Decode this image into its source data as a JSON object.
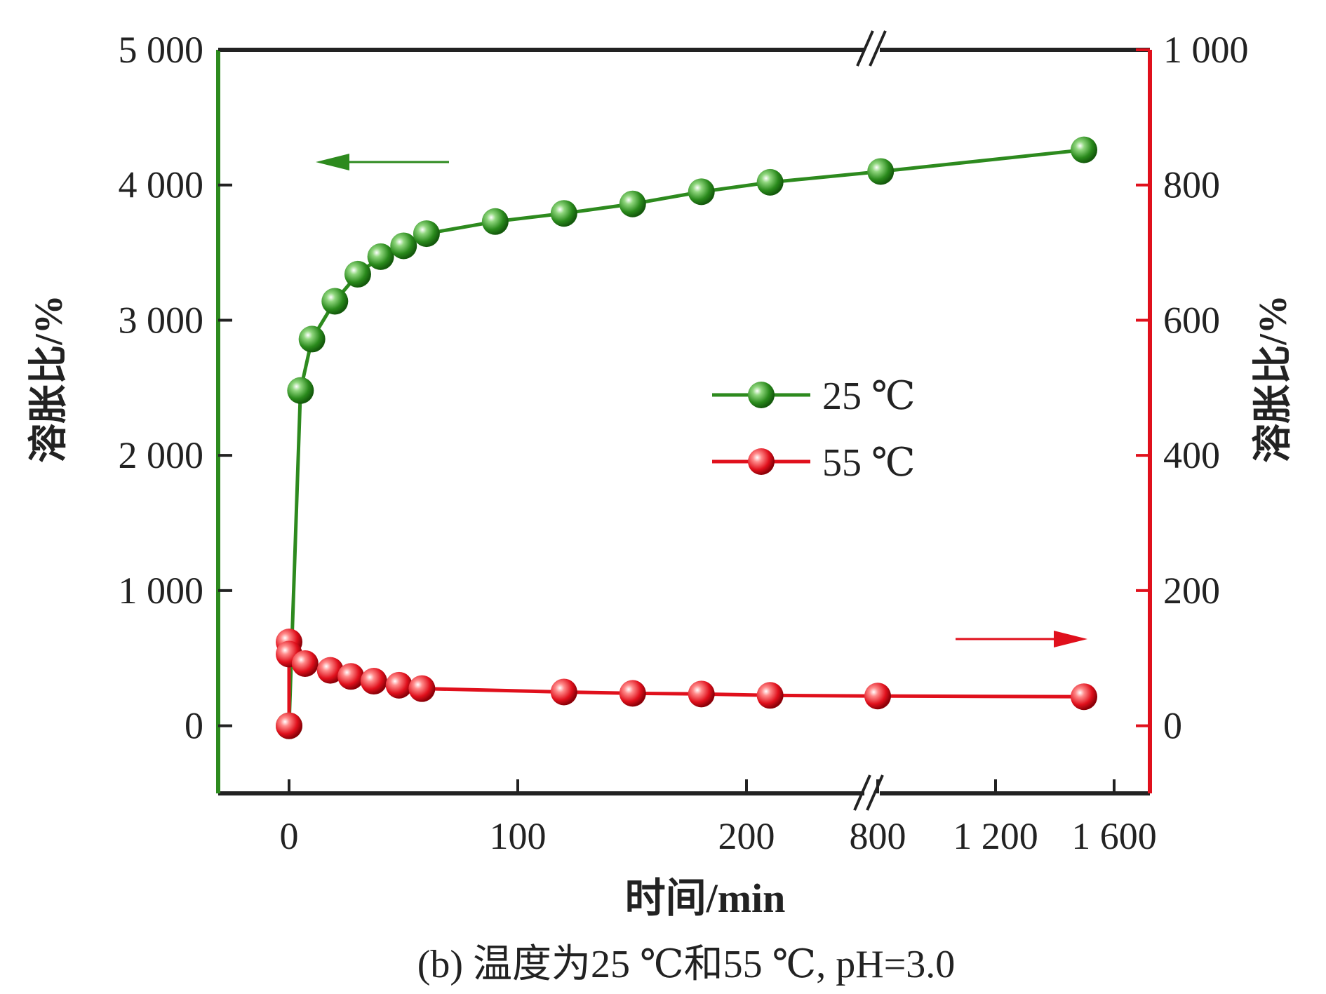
{
  "chart_data": {
    "type": "line",
    "caption": "(b) 温度为25 ℃和55 ℃, pH=3.0",
    "xlabel": "时间/min",
    "ylabel_left": "溶胀比/%",
    "ylabel_right": "溶胀比/%",
    "x_axis_break": true,
    "x_ticks": [
      "0",
      "100",
      "200",
      "800",
      "1 200",
      "1 600"
    ],
    "y_left_ticks": [
      "0",
      "1 000",
      "2 000",
      "3 000",
      "4 000",
      "5 000"
    ],
    "y_right_ticks": [
      "0",
      "200",
      "400",
      "600",
      "800",
      "1 000"
    ],
    "y_left_range": [
      -500,
      5000
    ],
    "y_right_range": [
      -100,
      1000
    ],
    "series": [
      {
        "name": "25 ℃",
        "axis": "left",
        "color": "#2d8a1e",
        "points": [
          {
            "x": 0,
            "y": 0
          },
          {
            "x": 5,
            "y": 2480
          },
          {
            "x": 10,
            "y": 2860
          },
          {
            "x": 20,
            "y": 3140
          },
          {
            "x": 30,
            "y": 3340
          },
          {
            "x": 40,
            "y": 3470
          },
          {
            "x": 50,
            "y": 3550
          },
          {
            "x": 60,
            "y": 3640
          },
          {
            "x": 90,
            "y": 3730
          },
          {
            "x": 120,
            "y": 3790
          },
          {
            "x": 150,
            "y": 3860
          },
          {
            "x": 180,
            "y": 3950
          },
          {
            "x": 210,
            "y": 4020
          },
          {
            "x": 810,
            "y": 4100
          },
          {
            "x": 1500,
            "y": 4260
          }
        ]
      },
      {
        "name": "55 ℃",
        "axis": "right",
        "color": "#e0101c",
        "points": [
          {
            "x": 0,
            "y": 0
          },
          {
            "x": 0,
            "y": 124
          },
          {
            "x": 0,
            "y": 106
          },
          {
            "x": 7,
            "y": 92
          },
          {
            "x": 18,
            "y": 82
          },
          {
            "x": 27,
            "y": 73
          },
          {
            "x": 37,
            "y": 66
          },
          {
            "x": 48,
            "y": 60
          },
          {
            "x": 58,
            "y": 55
          },
          {
            "x": 120,
            "y": 50
          },
          {
            "x": 150,
            "y": 48
          },
          {
            "x": 180,
            "y": 47
          },
          {
            "x": 210,
            "y": 45
          },
          {
            "x": 800,
            "y": 44
          },
          {
            "x": 1500,
            "y": 43
          }
        ]
      }
    ]
  }
}
